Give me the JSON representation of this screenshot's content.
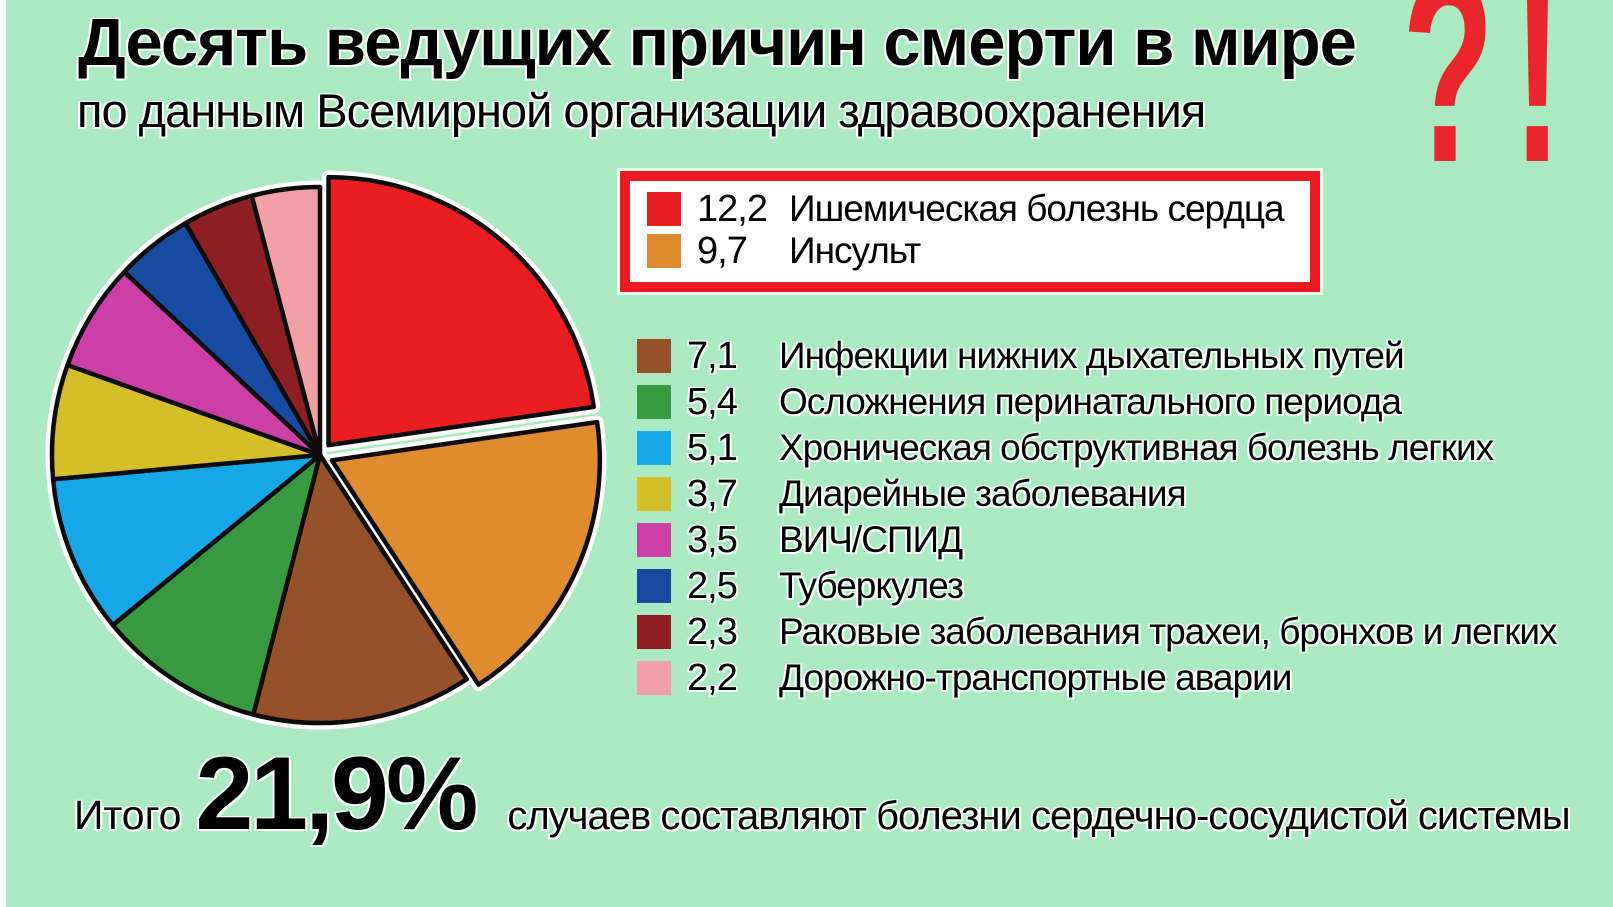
{
  "header": {
    "title": "Десять ведущих причин смерти в мире",
    "subtitle": "по данным Всемирной организации здравоохранения",
    "interrobang": "?!"
  },
  "chart_data": {
    "type": "pie",
    "title": "Десять ведущих причин смерти в мире",
    "subtitle": "по данным Всемирной организации здравоохранения",
    "values_are": "percent of deaths worldwide",
    "start_angle_deg": -90,
    "direction": "clockwise",
    "legend_position": "right",
    "slices": [
      {
        "label": "Ишемическая болезнь сердца",
        "display_value": "12,2",
        "value": 12.2,
        "color": "#ea1e20",
        "exploded": true,
        "highlighted": true
      },
      {
        "label": "Инсульт",
        "display_value": "9,7",
        "value": 9.7,
        "color": "#e08c2e",
        "exploded": true,
        "highlighted": true
      },
      {
        "label": "Инфекции нижних дыхательных путей",
        "display_value": "7,1",
        "value": 7.1,
        "color": "#96502a",
        "exploded": false,
        "highlighted": false
      },
      {
        "label": "Осложнения перинатального периода",
        "display_value": "5,4",
        "value": 5.4,
        "color": "#379a41",
        "exploded": false,
        "highlighted": false
      },
      {
        "label": "Хроническая обструктивная болезнь легких",
        "display_value": "5,1",
        "value": 5.1,
        "color": "#16a7e9",
        "exploded": false,
        "highlighted": false
      },
      {
        "label": "Диарейные заболевания",
        "display_value": "3,7",
        "value": 3.7,
        "color": "#d5bf28",
        "exploded": false,
        "highlighted": false
      },
      {
        "label": "ВИЧ/СПИД",
        "display_value": "3,5",
        "value": 3.5,
        "color": "#cd3ea6",
        "exploded": false,
        "highlighted": false
      },
      {
        "label": "Туберкулез",
        "display_value": "2,5",
        "value": 2.5,
        "color": "#174ba2",
        "exploded": false,
        "highlighted": false
      },
      {
        "label": "Раковые заболевания трахеи, бронхов и легких",
        "display_value": "2,3",
        "value": 2.3,
        "color": "#8f1e23",
        "exploded": false,
        "highlighted": false
      },
      {
        "label": "Дорожно-транспортные аварии",
        "display_value": "2,2",
        "value": 2.2,
        "color": "#f2a0a8",
        "exploded": false,
        "highlighted": false
      }
    ]
  },
  "summary": {
    "prefix": "Итого",
    "total": "21,9%",
    "suffix": "случаев составляют болезни сердечно-сосудистой системы"
  },
  "colors": {
    "background": "#abe9c2",
    "highlight_box_border": "#ed1b21",
    "interrobang": "#e9262b",
    "slice_outline": "#0b0b0b",
    "text": "#000000"
  }
}
